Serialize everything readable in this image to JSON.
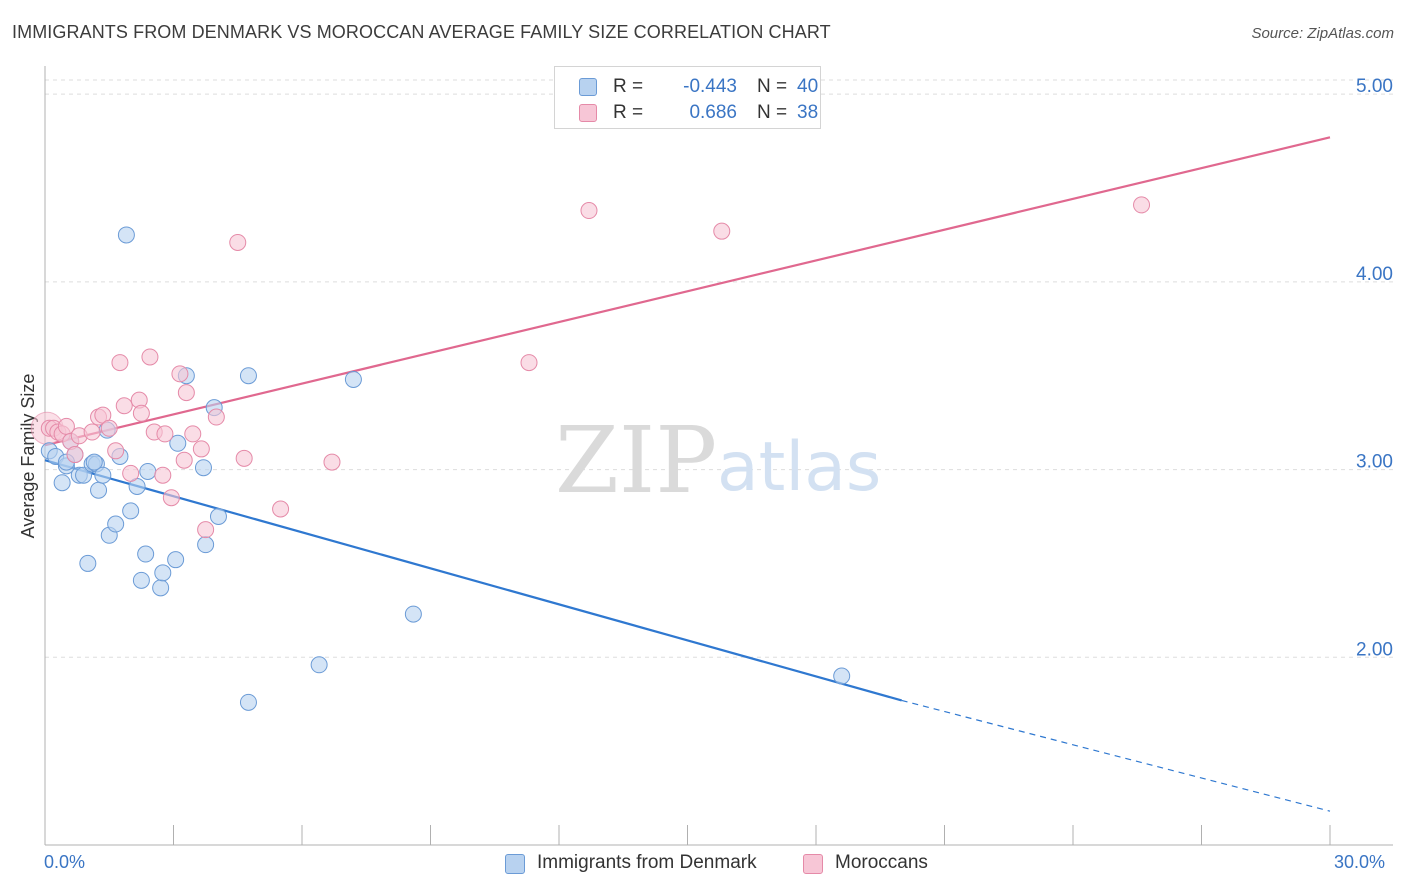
{
  "title": "IMMIGRANTS FROM DENMARK VS MOROCCAN AVERAGE FAMILY SIZE CORRELATION CHART",
  "source": "Source: ZipAtlas.com",
  "watermark": {
    "zip": "ZIP",
    "atlas": "atlas"
  },
  "colors": {
    "blue_fill": "#b8d2f0",
    "blue_stroke": "#6b9bd6",
    "blue_line": "#2f78d0",
    "pink_fill": "#f7c6d6",
    "pink_stroke": "#e58aa8",
    "pink_line": "#e0688f",
    "tick_label": "#3a75c4",
    "grid": "#dddddd"
  },
  "stats": [
    {
      "r_label": "R =",
      "r_value": "-0.443",
      "n_label": "N =",
      "n_value": "40",
      "color": "blue"
    },
    {
      "r_label": "R =",
      "r_value": "0.686",
      "n_label": "N =",
      "n_value": "38",
      "color": "pink"
    }
  ],
  "chart_data": {
    "type": "scatter",
    "title": "IMMIGRANTS FROM DENMARK VS MOROCCAN AVERAGE FAMILY SIZE CORRELATION CHART",
    "xlabel": "",
    "ylabel": "Average Family Size",
    "xlim": [
      0,
      30
    ],
    "ylim": [
      1.0,
      5.15
    ],
    "x_tick_labels": [
      "0.0%",
      "30.0%"
    ],
    "y_ticks": [
      2.0,
      3.0,
      4.0,
      5.0
    ],
    "y_tick_labels": [
      "2.00",
      "3.00",
      "4.00",
      "5.00"
    ],
    "grid": "horizontal dashed",
    "legend_position": "bottom-center",
    "series": [
      {
        "name": "Immigrants from Denmark",
        "color": "blue",
        "trend": {
          "x0": 0,
          "y0": 3.05,
          "x1": 20,
          "y1": 1.77,
          "dash_to_x": 30,
          "dash_to_y": 1.18
        },
        "points": [
          [
            0.1,
            3.1
          ],
          [
            0.25,
            3.07
          ],
          [
            0.4,
            2.93
          ],
          [
            0.5,
            3.02
          ],
          [
            0.6,
            3.15
          ],
          [
            0.7,
            3.08
          ],
          [
            0.8,
            2.97
          ],
          [
            0.9,
            2.97
          ],
          [
            1.0,
            2.5
          ],
          [
            1.1,
            3.03
          ],
          [
            1.2,
            3.03
          ],
          [
            1.25,
            2.89
          ],
          [
            1.35,
            2.97
          ],
          [
            1.45,
            3.21
          ],
          [
            1.5,
            2.65
          ],
          [
            1.65,
            2.71
          ],
          [
            1.75,
            3.07
          ],
          [
            1.9,
            4.25
          ],
          [
            2.0,
            2.78
          ],
          [
            2.15,
            2.91
          ],
          [
            2.25,
            2.41
          ],
          [
            2.35,
            2.55
          ],
          [
            2.4,
            2.99
          ],
          [
            2.7,
            2.37
          ],
          [
            2.75,
            2.45
          ],
          [
            3.05,
            2.52
          ],
          [
            3.1,
            3.14
          ],
          [
            3.3,
            3.5
          ],
          [
            3.7,
            3.01
          ],
          [
            3.75,
            2.6
          ],
          [
            3.95,
            3.33
          ],
          [
            4.05,
            2.75
          ],
          [
            4.75,
            1.76
          ],
          [
            4.75,
            3.5
          ],
          [
            6.4,
            1.96
          ],
          [
            7.2,
            3.48
          ],
          [
            8.6,
            2.23
          ],
          [
            18.6,
            1.9
          ],
          [
            0.5,
            3.04
          ],
          [
            1.15,
            3.04
          ]
        ]
      },
      {
        "name": "Moroccans",
        "color": "pink",
        "trend": {
          "x0": 0,
          "y0": 3.13,
          "x1": 30,
          "y1": 4.77
        },
        "points": [
          [
            0.1,
            3.22
          ],
          [
            0.2,
            3.22
          ],
          [
            0.3,
            3.2
          ],
          [
            0.4,
            3.19
          ],
          [
            0.5,
            3.23
          ],
          [
            0.6,
            3.15
          ],
          [
            0.7,
            3.08
          ],
          [
            0.8,
            3.18
          ],
          [
            1.1,
            3.2
          ],
          [
            1.25,
            3.28
          ],
          [
            1.35,
            3.29
          ],
          [
            1.5,
            3.22
          ],
          [
            1.65,
            3.1
          ],
          [
            1.75,
            3.57
          ],
          [
            1.85,
            3.34
          ],
          [
            2.0,
            2.98
          ],
          [
            2.2,
            3.37
          ],
          [
            2.25,
            3.3
          ],
          [
            2.45,
            3.6
          ],
          [
            2.55,
            3.2
          ],
          [
            2.75,
            2.97
          ],
          [
            2.8,
            3.19
          ],
          [
            2.95,
            2.85
          ],
          [
            3.15,
            3.51
          ],
          [
            3.25,
            3.05
          ],
          [
            3.3,
            3.41
          ],
          [
            3.45,
            3.19
          ],
          [
            3.65,
            3.11
          ],
          [
            3.75,
            2.68
          ],
          [
            4.0,
            3.28
          ],
          [
            4.5,
            4.21
          ],
          [
            4.65,
            3.06
          ],
          [
            5.5,
            2.79
          ],
          [
            6.7,
            3.04
          ],
          [
            11.3,
            3.57
          ],
          [
            12.7,
            4.38
          ],
          [
            15.8,
            4.27
          ],
          [
            25.6,
            4.41
          ]
        ]
      }
    ]
  }
}
